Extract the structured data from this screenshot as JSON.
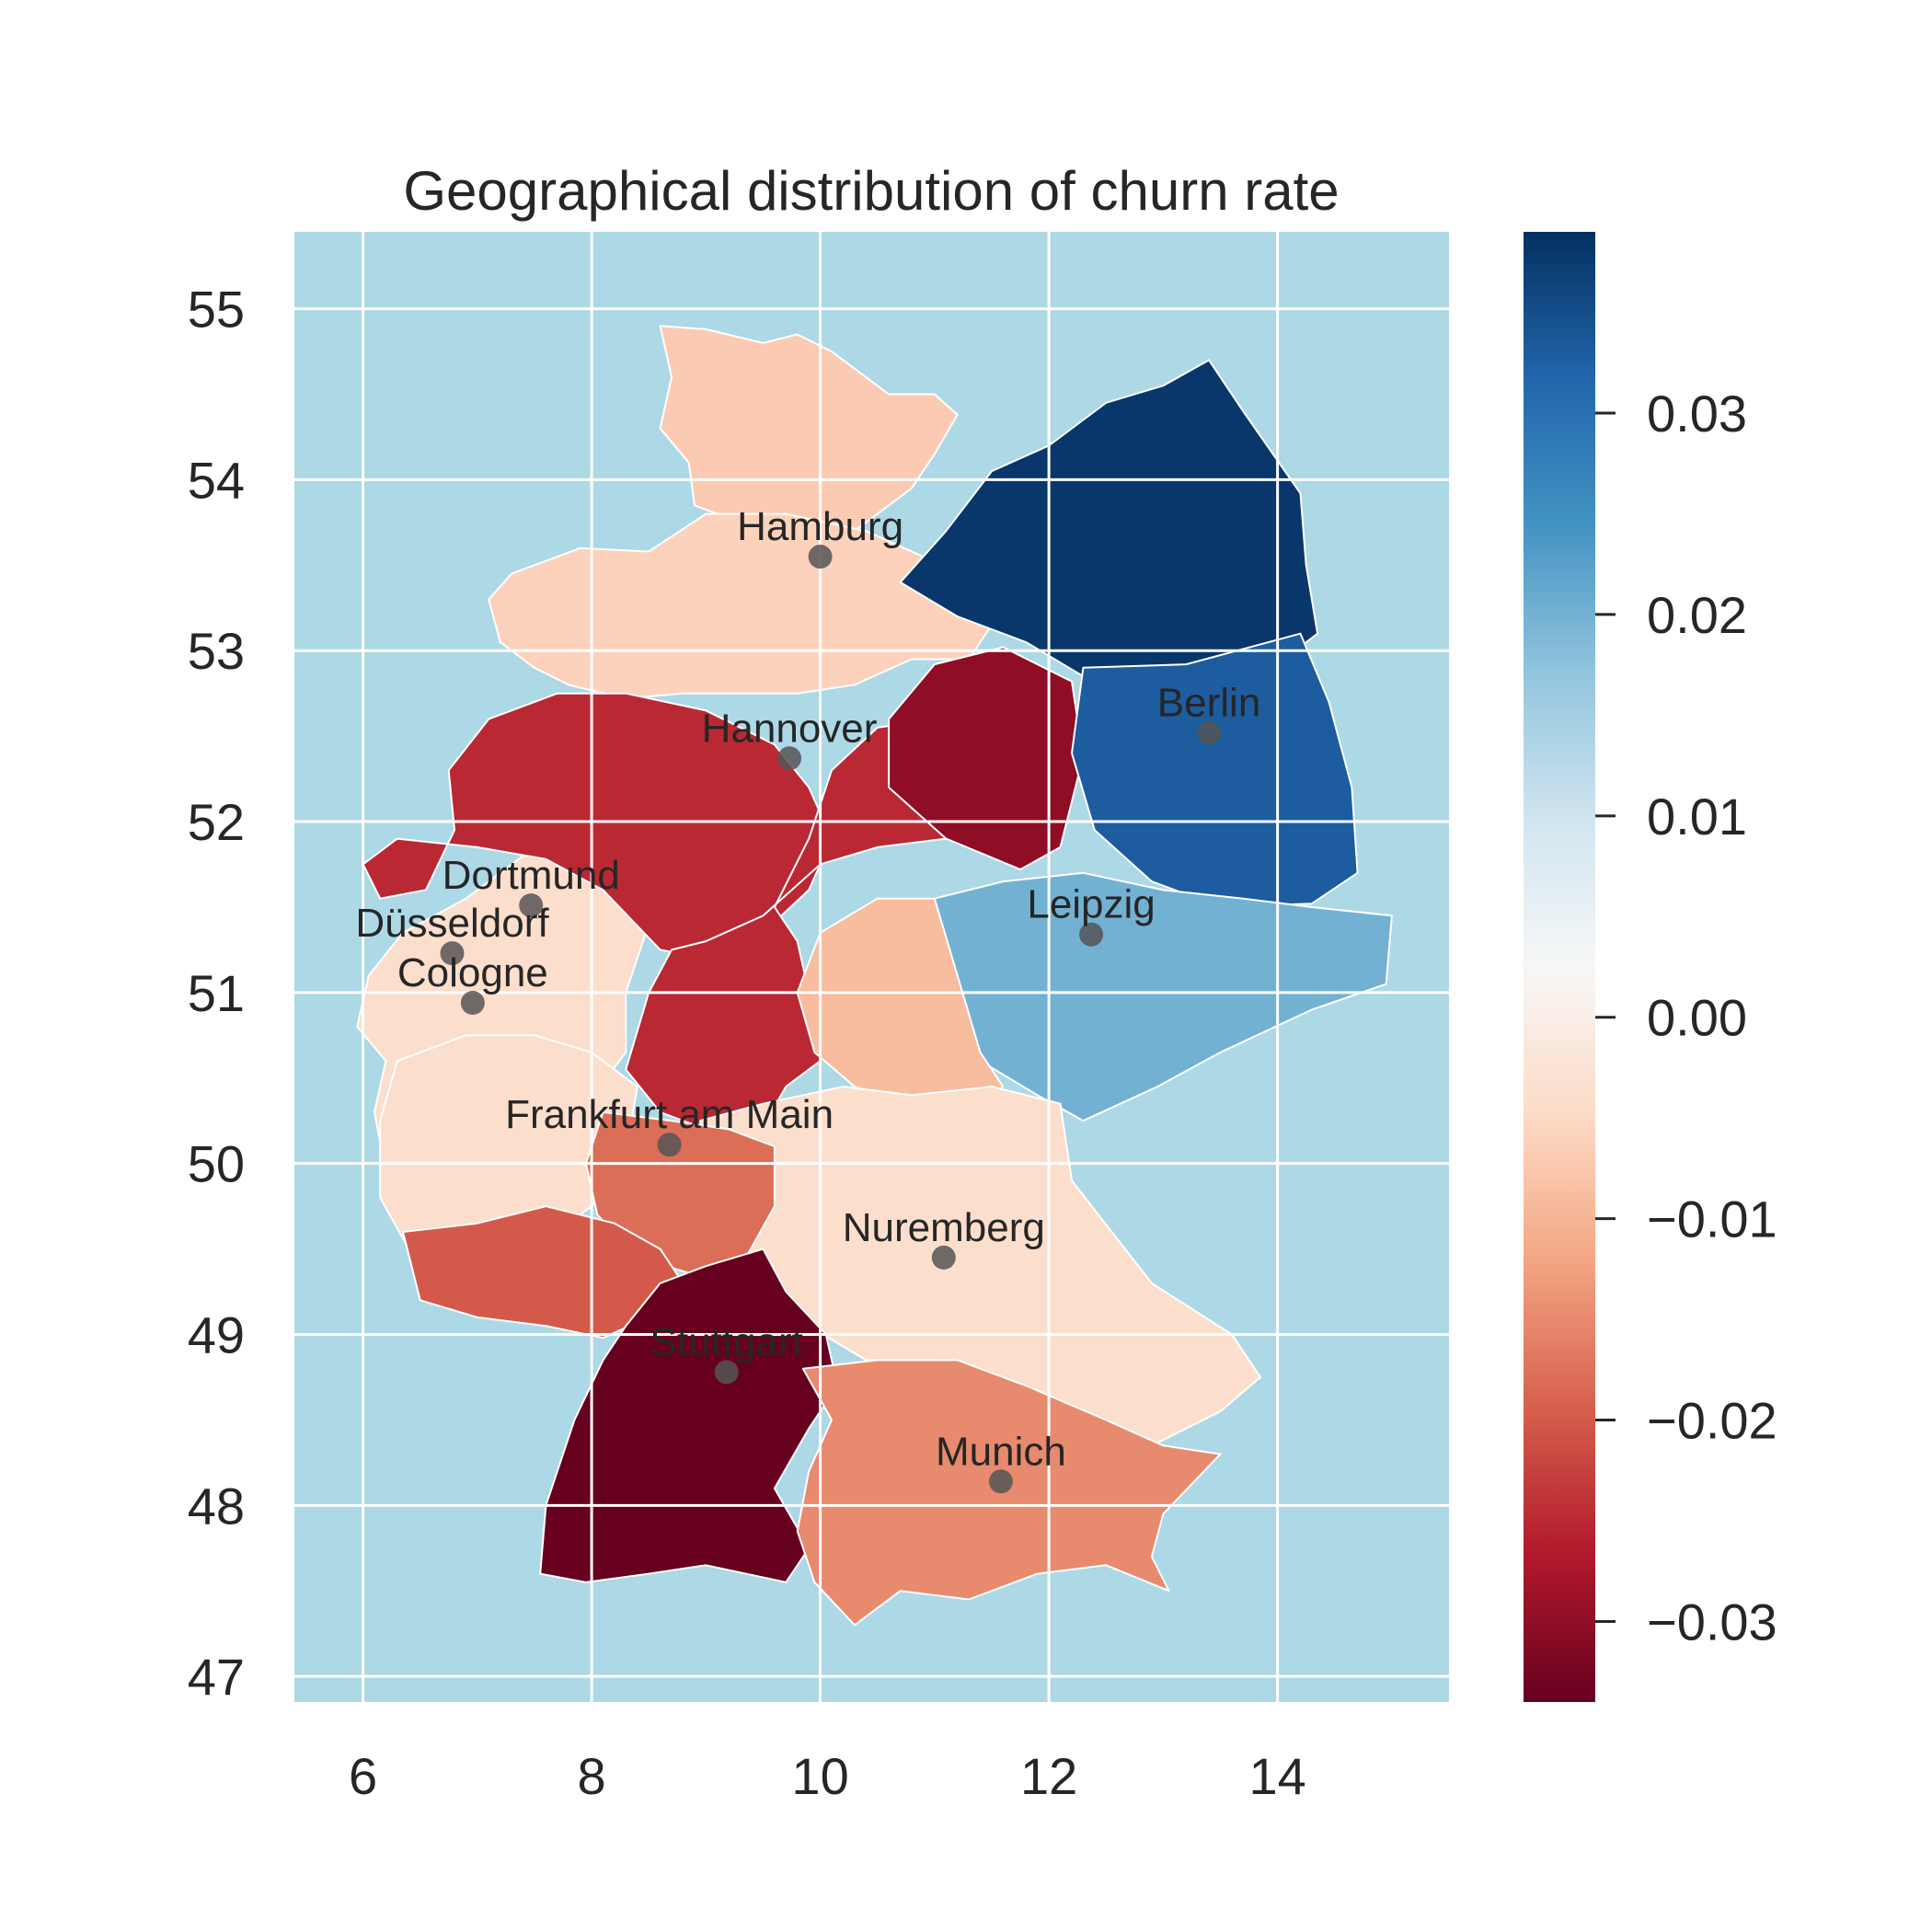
{
  "chart_data": {
    "type": "choropleth",
    "title": "Geographical distribution of churn rate",
    "xlabel": "",
    "ylabel": "",
    "xlim": [
      5.4,
      15.5
    ],
    "ylim": [
      46.85,
      55.45
    ],
    "x_ticks": [
      6,
      8,
      10,
      12,
      14
    ],
    "y_ticks": [
      47,
      48,
      49,
      50,
      51,
      52,
      53,
      54,
      55
    ],
    "grid": true,
    "colormap": "RdBu",
    "color_range": [
      -0.034,
      0.039
    ],
    "colorbar_ticks": [
      {
        "value": 0.03,
        "label": "0.03"
      },
      {
        "value": 0.02,
        "label": "0.02"
      },
      {
        "value": 0.01,
        "label": "0.01"
      },
      {
        "value": 0.0,
        "label": "0.00"
      },
      {
        "value": -0.01,
        "label": "−0.01"
      },
      {
        "value": -0.02,
        "label": "−0.02"
      },
      {
        "value": -0.03,
        "label": "−0.03"
      }
    ],
    "cities": [
      {
        "name": "Hamburg",
        "lon": 10.0,
        "lat": 53.55
      },
      {
        "name": "Berlin",
        "lon": 13.4,
        "lat": 52.52
      },
      {
        "name": "Hannover",
        "lon": 9.73,
        "lat": 52.37
      },
      {
        "name": "Dortmund",
        "lon": 7.47,
        "lat": 51.51
      },
      {
        "name": "Düsseldorf",
        "lon": 6.78,
        "lat": 51.23
      },
      {
        "name": "Leipzig",
        "lon": 12.37,
        "lat": 51.34
      },
      {
        "name": "Cologne",
        "lon": 6.96,
        "lat": 50.94
      },
      {
        "name": "Frankfurt am Main",
        "lon": 8.68,
        "lat": 50.11
      },
      {
        "name": "Nuremberg",
        "lon": 11.08,
        "lat": 49.45
      },
      {
        "name": "Stuttgart",
        "lon": 9.18,
        "lat": 48.78
      },
      {
        "name": "Munich",
        "lon": 11.58,
        "lat": 48.14
      }
    ],
    "regions": [
      {
        "id": "schleswig-holstein",
        "value": -0.007
      },
      {
        "id": "lower-saxony-north",
        "value": -0.006
      },
      {
        "id": "north-rhine-westphalia-west",
        "value": -0.004
      },
      {
        "id": "northwest-red",
        "value": -0.025
      },
      {
        "id": "central-red",
        "value": -0.025
      },
      {
        "id": "saxony-anhalt",
        "value": -0.03
      },
      {
        "id": "mecklenburg-brandenburg",
        "value": 0.038
      },
      {
        "id": "brandenburg-berlin",
        "value": 0.033
      },
      {
        "id": "saxony",
        "value": 0.02
      },
      {
        "id": "thuringia",
        "value": -0.009
      },
      {
        "id": "franconia",
        "value": -0.004
      },
      {
        "id": "rhineland-palatinate",
        "value": -0.004
      },
      {
        "id": "hesse-south",
        "value": -0.018
      },
      {
        "id": "saarland-palatinate",
        "value": -0.02
      },
      {
        "id": "baden-wuerttemberg",
        "value": -0.034
      },
      {
        "id": "southern-bavaria",
        "value": -0.015
      }
    ]
  }
}
